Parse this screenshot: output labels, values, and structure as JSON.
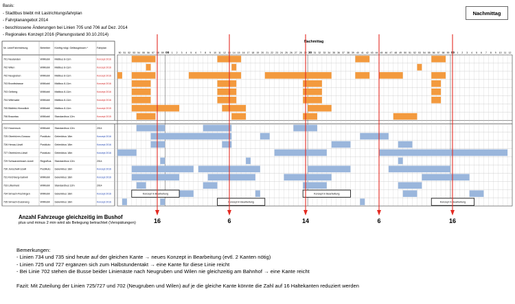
{
  "basis": {
    "title": "Basis:",
    "items": [
      "- Stadtbus bleibt mit Lastrichtungsfahrplan",
      "- Fahrplanangebot 2014",
      "- beschlossene Änderungen bei Linien 705 und 706 auf Dez. 2014",
      "- Regionales Konzept 2016 (Planungsstand 30.10.2014)"
    ]
  },
  "period_label": "Nachmittag",
  "period_header": "Nachmittag",
  "table_headers": {
    "line": "Nr. Linie/Fahrtrichtung",
    "operator": "Betreiber",
    "vehicle": "Künftig mögl. Gefässgrössen *",
    "plan": "Fahrplan"
  },
  "minute_labels": [
    "46",
    "51",
    "56",
    "01",
    "06",
    "11",
    "16",
    "21",
    "26",
    "31",
    "36",
    "41",
    "46",
    "51",
    "56",
    "01",
    "06",
    "11",
    "16",
    "21",
    "26",
    "31",
    "36",
    "41",
    "46",
    "51",
    "56",
    "01",
    "06",
    "11",
    "16",
    "21",
    "26",
    "31",
    "36",
    "41",
    "46",
    "51",
    "56",
    "01",
    "06",
    "11",
    "16",
    "21",
    "26",
    "31",
    "36",
    "41",
    "46",
    "51",
    "56",
    "01",
    "06",
    "11",
    "16",
    "21",
    "26",
    "31",
    "36",
    "41",
    "46",
    "51",
    "56",
    "01",
    "06",
    "11",
    "16",
    "21",
    "26",
    "31",
    "36",
    "41",
    "46",
    "51",
    "56",
    "01",
    "06",
    "11",
    "16",
    "21",
    "26",
    "31",
    "36",
    "41",
    "46",
    "51",
    "56"
  ],
  "tick_labels": [
    "50",
    "51",
    "52",
    "53",
    "54",
    "55",
    "56",
    "57",
    "58",
    "59",
    "00",
    "1",
    "2",
    "3",
    "4",
    "5",
    "6",
    "7",
    "8",
    "9",
    "10",
    "11",
    "12",
    "13",
    "14",
    "15",
    "16",
    "17",
    "18",
    "19",
    "20",
    "21",
    "22",
    "23",
    "24",
    "25",
    "26",
    "27",
    "28",
    "29",
    "30",
    "31",
    "32",
    "33",
    "34",
    "35",
    "36",
    "37",
    "38",
    "39",
    "40",
    "41",
    "42",
    "43",
    "44",
    "45",
    "46",
    "47",
    "48",
    "49",
    "50",
    "51",
    "52",
    "53",
    "54",
    "55",
    "56",
    "57",
    "58",
    "59",
    "00",
    "1",
    "2",
    "3",
    "4",
    "5",
    "6",
    "7",
    "8",
    "9",
    "10",
    "11",
    "12"
  ],
  "rows": [
    {
      "line": "701 Neulanden",
      "operator": "WilMobil",
      "vehicle": "Midibus 8-11m",
      "plan": "Konzept 2016",
      "group": "a"
    },
    {
      "line": "702 Wilen",
      "operator": "WilMobil",
      "vehicle": "Midibus 8-11m",
      "plan": "Konzept 2016",
      "group": "a"
    },
    {
      "line": "702 Neugruben",
      "operator": "WilMobil",
      "vehicle": "Midibus 8-11m",
      "plan": "Konzept 2016",
      "group": "a"
    },
    {
      "line": "703 Bronttstrasse",
      "operator": "WilMobil",
      "vehicle": "Midibus 8-11m",
      "plan": "Konzept 2016",
      "group": "a"
    },
    {
      "line": "703 Gelberg",
      "operator": "WilMobil",
      "vehicle": "Midibus 8-11m",
      "plan": "Konzept 2016",
      "group": "a"
    },
    {
      "line": "704 Wilerwald",
      "operator": "WilMobil",
      "vehicle": "Midibus 8-11m",
      "plan": "Konzept 2016",
      "group": "a"
    },
    {
      "line": "705 Bildfeld-Hinnwilich",
      "operator": "WilMobil",
      "vehicle": "Midibus 8-11m",
      "plan": "Konzept 2015",
      "group": "a"
    },
    {
      "line": "706 Brauntau",
      "operator": "WilMobil",
      "vehicle": "Standardbus 12m",
      "plan": "Konzept 2015",
      "group": "a"
    },
    {
      "line": "722 Hosenruck",
      "operator": "WilMobil",
      "vehicle": "Standardbus 12m",
      "plan": "2014",
      "group": "b"
    },
    {
      "line": "725 Oberbüren-Gossau",
      "operator": "PostAuto",
      "vehicle": "Gelenkbus 18m",
      "plan": "Konzept 2016",
      "group": "b"
    },
    {
      "line": "726 Henau-Uzwil",
      "operator": "PostAuto",
      "vehicle": "Gelenkbus 18m",
      "plan": "Konzept 2016",
      "group": "b"
    },
    {
      "line": "727 Oberbüren-Uzwil",
      "operator": "PostAuto",
      "vehicle": "Gelenkbus 18m",
      "plan": "Konzept 2016",
      "group": "b"
    },
    {
      "line": "729 Schwarzenbach-Uzwil",
      "operator": "RegioBus",
      "vehicle": "Standardbus 12m",
      "plan": "2014",
      "group": "b"
    },
    {
      "line": "730 Jonschwil-Uzwil",
      "operator": "PostAuto",
      "vehicle": "Gelenkbus 18m",
      "plan": "Konzept 2016",
      "group": "b"
    },
    {
      "line": "731 Kirchberg-Gahwil",
      "operator": "WilMobil",
      "vehicle": "Gelenkbus 18m",
      "plan": "Konzept 2016",
      "group": "b"
    },
    {
      "line": "733 Littenheid",
      "operator": "WilMobil",
      "vehicle": "Standardbus 12m",
      "plan": "2014",
      "group": "b"
    },
    {
      "line": "734 Sirnach-Fischingen",
      "operator": "WilMobil",
      "vehicle": "Gelenkbus 18m",
      "plan": "Konzept 2016",
      "group": "b"
    },
    {
      "line": "735 Sirnach-Dussnang",
      "operator": "WilMobil",
      "vehicle": "Gelenkbus 18m",
      "plan": "Konzept 2016",
      "group": "b"
    }
  ],
  "in_progress_label": "Konzept in Bearbeitung",
  "peak_counts": [
    "16",
    "6",
    "14",
    "6",
    "16"
  ],
  "summary_title": "Anzahl Fahrzeuge gleichzeitig im Bushof",
  "summary_subtitle": "plus und minus 2 min wird als Belegung betrachtet (Verspätungen)",
  "remarks_title": "Bemerkungen:",
  "remarks": [
    "- Linien 734 und 735 sind heute auf der gleichen Kante → neues Konzept in Bearbeitung (evtl. 2 Kanten nötig)",
    "- Linien 725 und 727 ergänzen sich zum Halbstundentakt → eine Kante für diese Linie reicht",
    "- Bei Linie 702 stehen die Busse beider Linienäste nach Neugruben und Wilen nie gleichzeitig am Bahnhof → eine Kante reicht"
  ],
  "conclusion": "Fazit: Mit Zuteilung der Linien 725/727 und 702 (Neugruben und Wilen) auf je die gleiche Kante könnte die Zahl auf 16 Haltekanten reduziert werden",
  "colors": {
    "orange": "#f39a3e",
    "blue": "#9ab6dc",
    "red": "#e32b22",
    "konzept_red": "#d12020",
    "konzept_blue": "#1a3fb0",
    "grid": "#c8c8c8"
  }
}
